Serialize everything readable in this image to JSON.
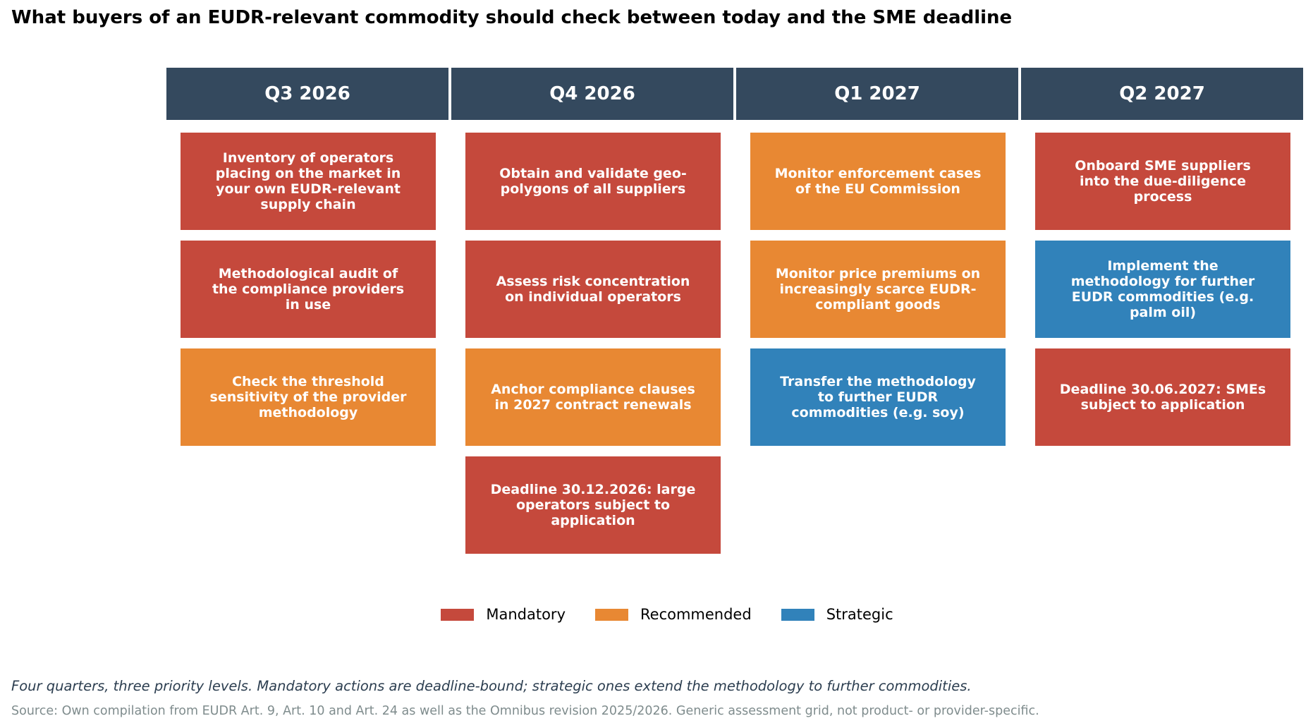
{
  "title": "What buyers of an EUDR-relevant commodity should check between today and the SME deadline",
  "colors": {
    "header": "#34495e",
    "mandatory": "#c0392b",
    "recommended": "#e67e22",
    "strategic": "#1f77b4"
  },
  "columns": [
    {
      "header": "Q3 2026",
      "items": [
        {
          "text": "Inventory of operators placing on the market in your own EUDR-relevant supply chain",
          "level": "mandatory"
        },
        {
          "text": "Methodological audit of the compliance providers in use",
          "level": "mandatory"
        },
        {
          "text": "Check the threshold sensitivity of the provider methodology",
          "level": "recommended"
        }
      ]
    },
    {
      "header": "Q4 2026",
      "items": [
        {
          "text": "Obtain and validate geo-polygons of all suppliers",
          "level": "mandatory"
        },
        {
          "text": "Assess risk concentration on individual operators",
          "level": "mandatory"
        },
        {
          "text": "Anchor compliance clauses in 2027 contract renewals",
          "level": "recommended"
        },
        {
          "text": "Deadline 30.12.2026: large operators subject to application",
          "level": "mandatory"
        }
      ]
    },
    {
      "header": "Q1 2027",
      "items": [
        {
          "text": "Monitor enforcement cases of the EU Commission",
          "level": "recommended"
        },
        {
          "text": "Monitor price premiums on increasingly scarce EUDR-compliant goods",
          "level": "recommended"
        },
        {
          "text": "Transfer the methodology to further EUDR commodities (e.g. soy)",
          "level": "strategic"
        }
      ]
    },
    {
      "header": "Q2 2027",
      "items": [
        {
          "text": "Onboard SME suppliers into the due-diligence process",
          "level": "mandatory"
        },
        {
          "text": "Implement the methodology for further EUDR commodities (e.g. palm oil)",
          "level": "strategic"
        },
        {
          "text": "Deadline 30.06.2027: SMEs subject to application",
          "level": "mandatory"
        }
      ]
    }
  ],
  "legend": [
    {
      "label": "Mandatory",
      "level": "mandatory"
    },
    {
      "label": "Recommended",
      "level": "recommended"
    },
    {
      "label": "Strategic",
      "level": "strategic"
    }
  ],
  "caption": "Four quarters, three priority levels. Mandatory actions are deadline-bound; strategic ones extend the methodology to further commodities.",
  "source": "Source: Own compilation from EUDR Art. 9, Art. 10 and Art. 24 as well as the Omnibus revision 2025/2026. Generic assessment grid, not product- or provider-specific."
}
